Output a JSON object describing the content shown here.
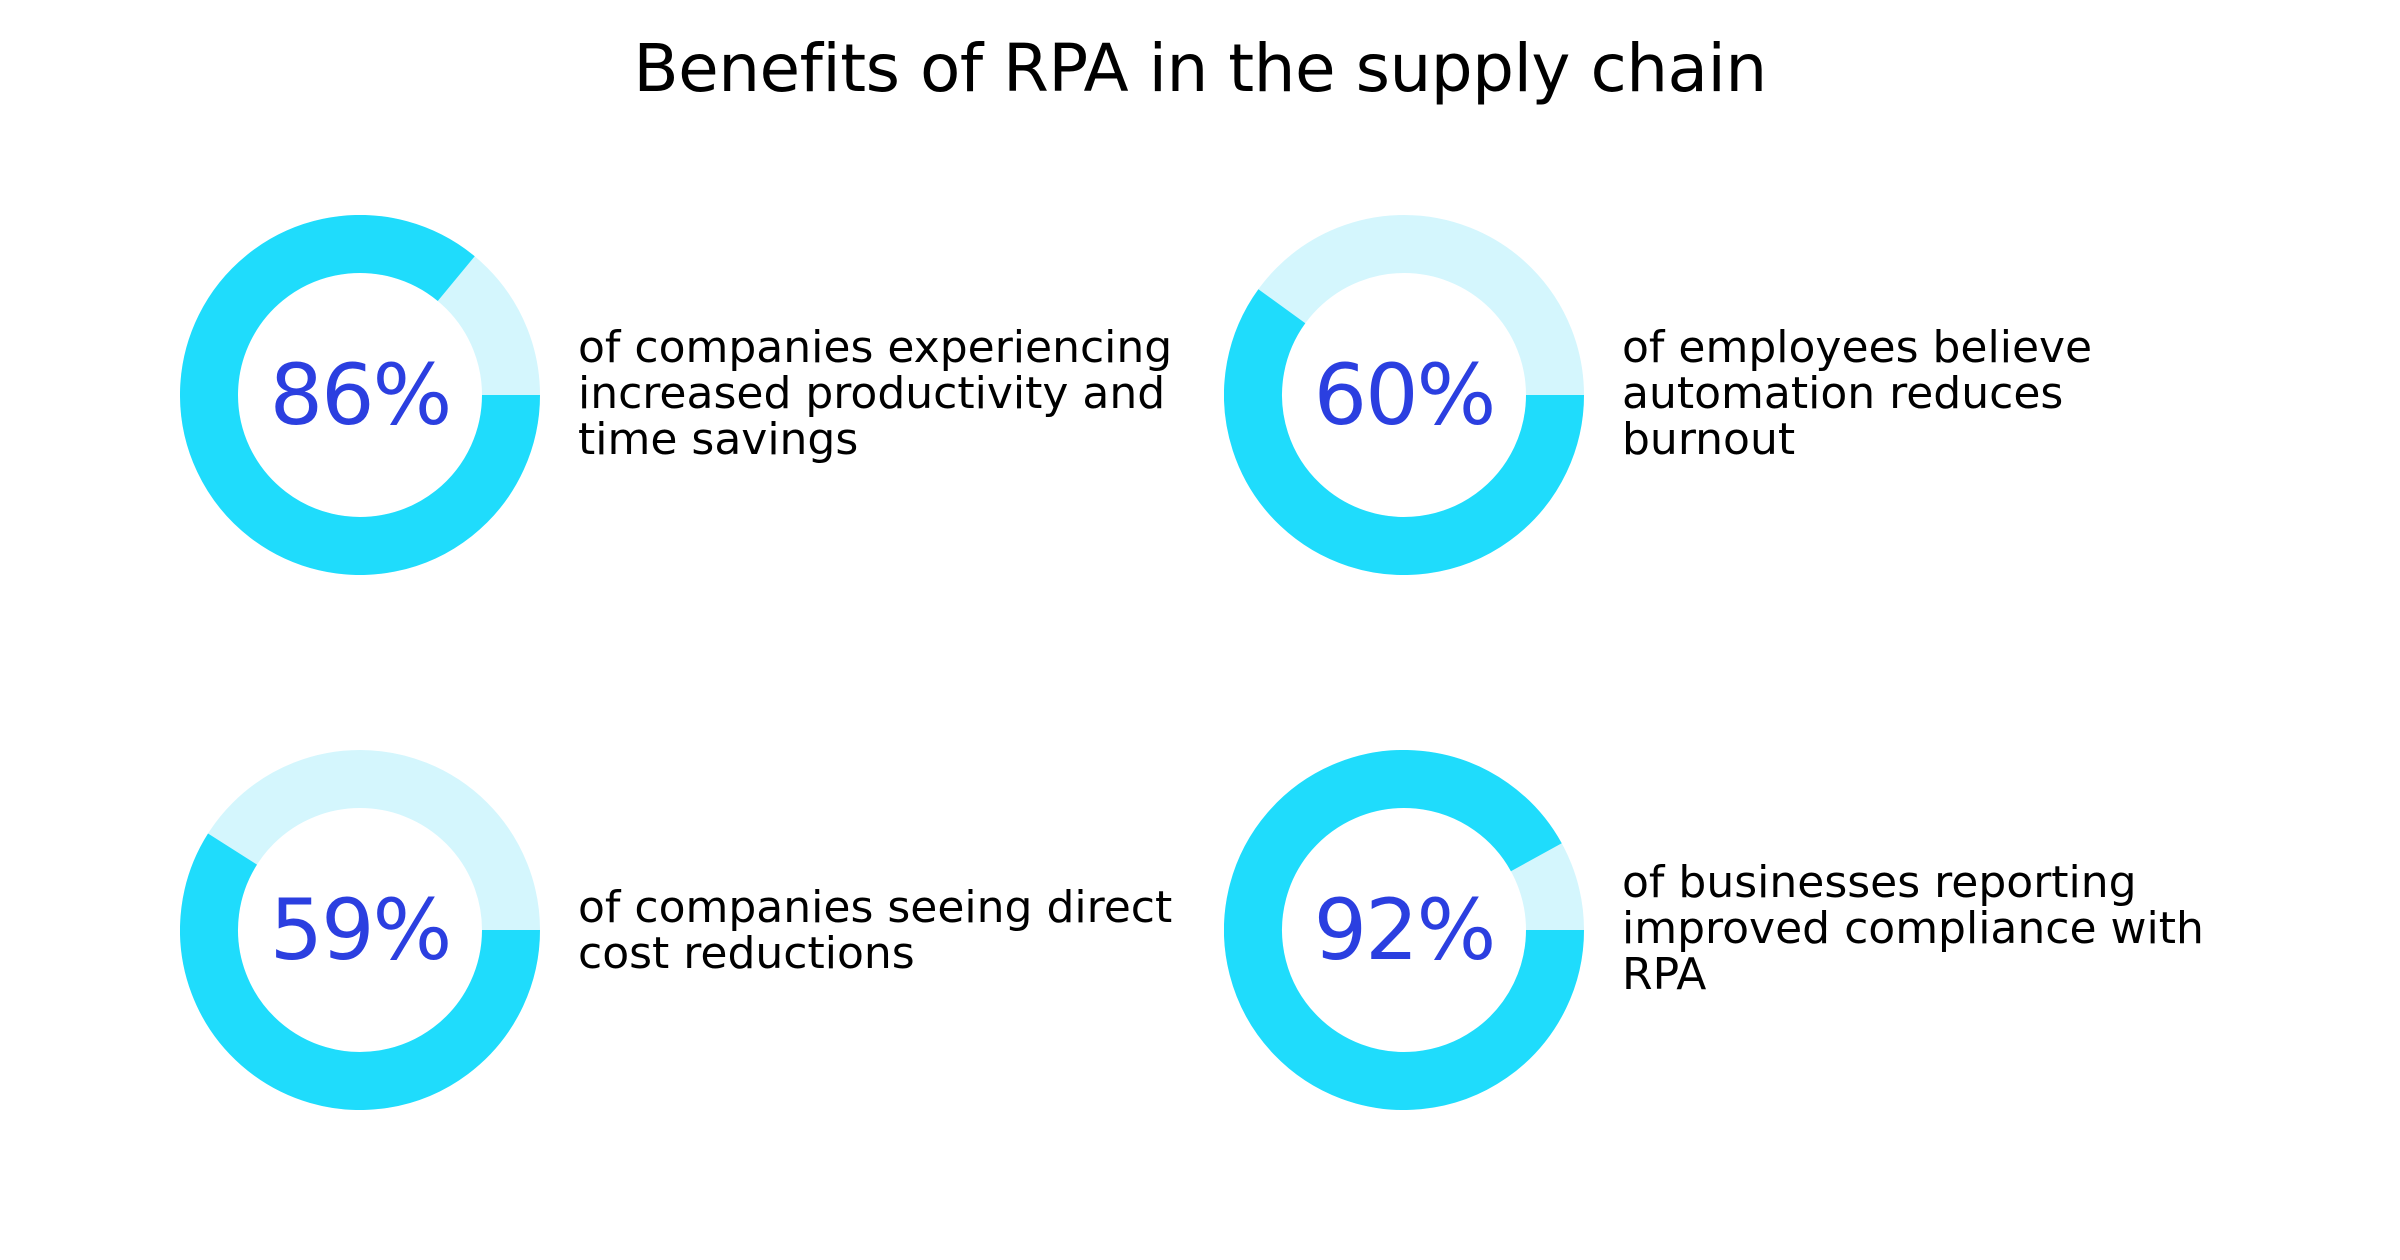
{
  "title": "Benefits of RPA in the supply chain",
  "colors": {
    "filled": "#1fdcfc",
    "remaining": "#d4f6fd",
    "percent_text": "#2b3fe0",
    "text": "#000000",
    "background": "#ffffff"
  },
  "chart_data": [
    {
      "type": "pie",
      "value": 86,
      "label": "86%",
      "description": "of companies experiencing\nincreased productivity and\ntime savings"
    },
    {
      "type": "pie",
      "value": 60,
      "label": "60%",
      "description": "of employees believe\nautomation reduces\nburnout"
    },
    {
      "type": "pie",
      "value": 59,
      "label": "59%",
      "description": "of companies seeing direct\ncost reductions"
    },
    {
      "type": "pie",
      "value": 92,
      "label": "92%",
      "description": "of businesses reporting\nimproved compliance with\nRPA"
    }
  ]
}
